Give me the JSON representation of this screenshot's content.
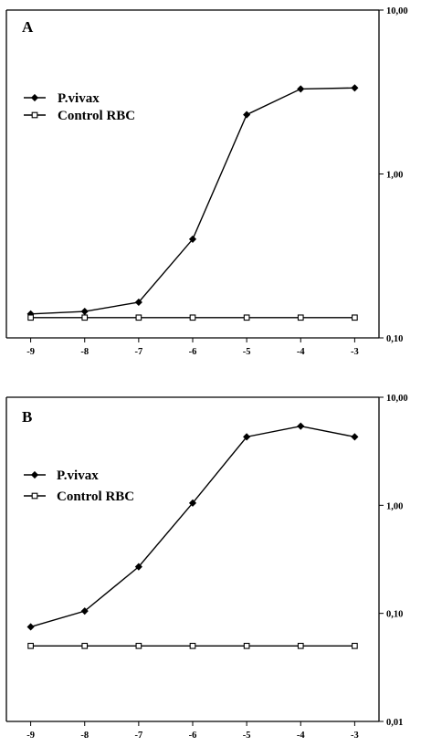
{
  "chart_data": [
    {
      "type": "line",
      "panel_label": "A",
      "yscale": "log",
      "ylim": [
        0.1,
        10
      ],
      "yticks": [
        0.1,
        1,
        10
      ],
      "ytick_labels": [
        "0,10",
        "1,00",
        "10,00"
      ],
      "x": [
        -9,
        -8,
        -7,
        -6,
        -5,
        -4,
        -3
      ],
      "xtick_labels": [
        "-9",
        "-8",
        "-7",
        "-6",
        "-5",
        "-4",
        "-3"
      ],
      "xlim": [
        -9.45,
        -2.55
      ],
      "legend_position": "upper-left",
      "series": [
        {
          "name": "P.vivax",
          "marker": "diamond-filled",
          "values": [
            0.14,
            0.145,
            0.165,
            0.4,
            2.3,
            3.3,
            3.35
          ]
        },
        {
          "name": "Control RBC",
          "marker": "square-open",
          "values": [
            0.133,
            0.133,
            0.133,
            0.133,
            0.133,
            0.133,
            0.133
          ]
        }
      ]
    },
    {
      "type": "line",
      "panel_label": "B",
      "yscale": "log",
      "ylim": [
        0.01,
        10
      ],
      "yticks": [
        0.01,
        0.1,
        1,
        10
      ],
      "ytick_labels": [
        "0,01",
        "0,10",
        "1,00",
        "10,00"
      ],
      "x": [
        -9,
        -8,
        -7,
        -6,
        -5,
        -4,
        -3
      ],
      "xtick_labels": [
        "-9",
        "-8",
        "-7",
        "-6",
        "-5",
        "-4",
        "-3"
      ],
      "xlim": [
        -9.45,
        -2.55
      ],
      "legend_position": "upper-left",
      "series": [
        {
          "name": "P.vivax",
          "marker": "diamond-filled",
          "values": [
            0.075,
            0.105,
            0.27,
            1.05,
            4.3,
            5.4,
            4.3
          ]
        },
        {
          "name": "Control RBC",
          "marker": "square-open",
          "values": [
            0.05,
            0.05,
            0.05,
            0.05,
            0.05,
            0.05,
            0.05
          ]
        }
      ]
    }
  ]
}
